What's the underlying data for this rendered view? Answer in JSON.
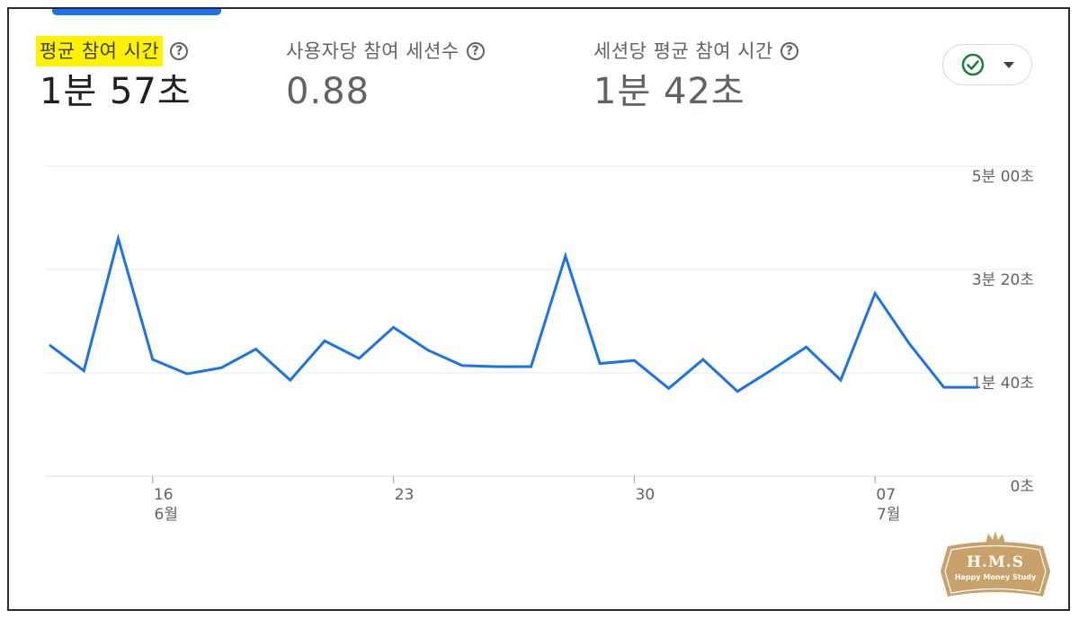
{
  "metrics": [
    {
      "label": "평균 참여 시간",
      "value": "1분 57초",
      "active": true
    },
    {
      "label": "사용자당 참여 세션수",
      "value": "0.88",
      "active": false
    },
    {
      "label": "세션당 평균 참여 시간",
      "value": "1분 42초",
      "active": false
    }
  ],
  "help_icon": "?",
  "compare_button": {
    "icon": "check-circle-icon",
    "dropdown": "caret-down-icon"
  },
  "colors": {
    "line": "#1a73e8",
    "highlight": "#fff200",
    "check": "#188038",
    "grid": "#e8eaed",
    "watermark": "#c9a26b"
  },
  "chart_data": {
    "type": "line",
    "title": "",
    "xlabel": "",
    "ylabel": "",
    "ylim": [
      0,
      300
    ],
    "y_unit": "seconds",
    "y_axis_position": "right",
    "y_ticks": [
      {
        "value": 300,
        "label": "5분 00초"
      },
      {
        "value": 200,
        "label": "3분 20초"
      },
      {
        "value": 100,
        "label": "1분 40초"
      },
      {
        "value": 0,
        "label": "0초"
      }
    ],
    "x_ticks": [
      {
        "day": "16",
        "month": "6월"
      },
      {
        "day": "23",
        "month": ""
      },
      {
        "day": "30",
        "month": ""
      },
      {
        "day": "07",
        "month": "7월"
      }
    ],
    "x": [
      "6월 13",
      "6월 14",
      "6월 15",
      "6월 16",
      "6월 17",
      "6월 18",
      "6월 19",
      "6월 20",
      "6월 21",
      "6월 22",
      "6월 23",
      "6월 24",
      "6월 25",
      "6월 26",
      "6월 27",
      "6월 28",
      "6월 29",
      "6월 30",
      "7월 1",
      "7월 2",
      "7월 3",
      "7월 4",
      "7월 5",
      "7월 6",
      "7월 7",
      "7월 8",
      "7월 9",
      "7월 10"
    ],
    "series": [
      {
        "values": [
          127,
          102,
          230,
          113,
          99,
          105,
          123,
          93,
          131,
          114,
          144,
          122,
          107,
          106,
          106,
          213,
          109,
          112,
          85,
          113,
          82,
          103,
          125,
          93,
          177,
          128,
          86,
          86
        ]
      }
    ],
    "grid": true,
    "legend": "none"
  },
  "watermark": {
    "title": "H.M.S",
    "subtitle": "Happy Money Study"
  }
}
